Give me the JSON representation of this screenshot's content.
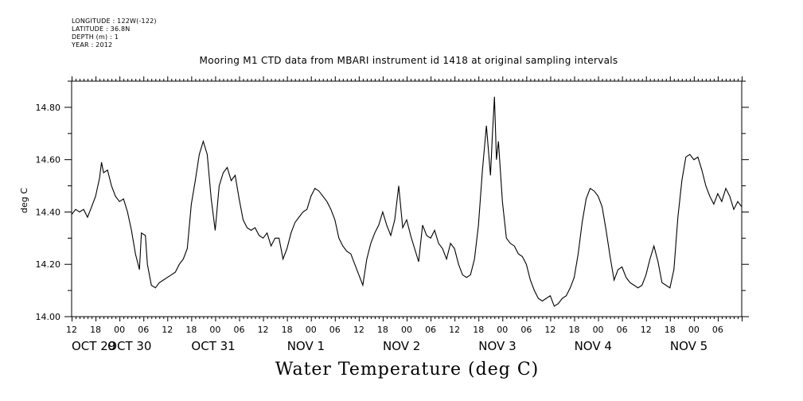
{
  "meta": {
    "longitude": "LONGITUDE : 122W(-122)",
    "latitude": "LATITUDE : 36.8N",
    "depth": "DEPTH (m) : 1",
    "year": "YEAR : 2012"
  },
  "chart_data": {
    "type": "line",
    "title": "Mooring M1 CTD data from MBARI instrument id 1418 at original sampling intervals",
    "xlabel": "Water Temperature (deg C)",
    "ylabel": "deg C",
    "ylim": [
      14.0,
      14.9
    ],
    "yticks": [
      "14.00",
      "14.20",
      "14.40",
      "14.60",
      "14.80"
    ],
    "xlim_hours": [
      0,
      168
    ],
    "hour_ticks": [
      "12",
      "18",
      "00",
      "06",
      "12",
      "18",
      "00",
      "06",
      "12",
      "18",
      "00",
      "06",
      "12",
      "18",
      "00",
      "06",
      "12",
      "18",
      "00",
      "06",
      "12",
      "18",
      "00",
      "06",
      "12",
      "18",
      "00",
      "06"
    ],
    "day_labels": [
      "OCT 29",
      "OCT 30",
      "OCT 31",
      "NOV  1",
      "NOV  2",
      "NOV  3",
      "NOV  4",
      "NOV  5"
    ],
    "grid": false,
    "series": [
      {
        "values": [
          [
            0,
            14.39
          ],
          [
            1,
            14.41
          ],
          [
            2,
            14.4
          ],
          [
            3,
            14.41
          ],
          [
            4,
            14.38
          ],
          [
            5,
            14.42
          ],
          [
            6,
            14.46
          ],
          [
            7,
            14.53
          ],
          [
            7.5,
            14.59
          ],
          [
            8,
            14.55
          ],
          [
            9,
            14.56
          ],
          [
            10,
            14.5
          ],
          [
            11,
            14.46
          ],
          [
            12,
            14.44
          ],
          [
            13,
            14.45
          ],
          [
            14,
            14.4
          ],
          [
            15,
            14.33
          ],
          [
            16,
            14.24
          ],
          [
            17,
            14.18
          ],
          [
            17.5,
            14.32
          ],
          [
            18.5,
            14.31
          ],
          [
            19,
            14.2
          ],
          [
            20,
            14.12
          ],
          [
            21,
            14.11
          ],
          [
            22,
            14.13
          ],
          [
            23,
            14.14
          ],
          [
            24,
            14.15
          ],
          [
            25,
            14.16
          ],
          [
            26,
            14.17
          ],
          [
            27,
            14.2
          ],
          [
            28,
            14.22
          ],
          [
            29,
            14.26
          ],
          [
            30,
            14.43
          ],
          [
            31,
            14.52
          ],
          [
            32,
            14.62
          ],
          [
            33,
            14.67
          ],
          [
            34,
            14.62
          ],
          [
            35,
            14.45
          ],
          [
            36,
            14.33
          ],
          [
            37,
            14.5
          ],
          [
            38,
            14.55
          ],
          [
            39,
            14.57
          ],
          [
            40,
            14.52
          ],
          [
            41,
            14.54
          ],
          [
            42,
            14.45
          ],
          [
            43,
            14.37
          ],
          [
            44,
            14.34
          ],
          [
            45,
            14.33
          ],
          [
            46,
            14.34
          ],
          [
            47,
            14.31
          ],
          [
            48,
            14.3
          ],
          [
            49,
            14.32
          ],
          [
            50,
            14.27
          ],
          [
            51,
            14.3
          ],
          [
            52,
            14.3
          ],
          [
            53,
            14.22
          ],
          [
            54,
            14.26
          ],
          [
            55,
            14.32
          ],
          [
            56,
            14.36
          ],
          [
            57,
            14.38
          ],
          [
            58,
            14.4
          ],
          [
            59,
            14.41
          ],
          [
            60,
            14.46
          ],
          [
            61,
            14.49
          ],
          [
            62,
            14.48
          ],
          [
            63,
            14.46
          ],
          [
            64,
            14.44
          ],
          [
            65,
            14.41
          ],
          [
            66,
            14.37
          ],
          [
            67,
            14.3
          ],
          [
            68,
            14.27
          ],
          [
            69,
            14.25
          ],
          [
            70,
            14.24
          ],
          [
            71,
            14.2
          ],
          [
            72,
            14.16
          ],
          [
            73,
            14.12
          ],
          [
            74,
            14.22
          ],
          [
            75,
            14.28
          ],
          [
            76,
            14.32
          ],
          [
            77,
            14.35
          ],
          [
            78,
            14.4
          ],
          [
            79,
            14.35
          ],
          [
            80,
            14.31
          ],
          [
            81,
            14.37
          ],
          [
            82,
            14.5
          ],
          [
            83,
            14.34
          ],
          [
            84,
            14.37
          ],
          [
            85,
            14.31
          ],
          [
            86,
            14.26
          ],
          [
            87,
            14.21
          ],
          [
            88,
            14.35
          ],
          [
            89,
            14.31
          ],
          [
            90,
            14.3
          ],
          [
            91,
            14.33
          ],
          [
            92,
            14.28
          ],
          [
            93,
            14.26
          ],
          [
            94,
            14.22
          ],
          [
            95,
            14.28
          ],
          [
            96,
            14.26
          ],
          [
            97,
            14.2
          ],
          [
            98,
            14.16
          ],
          [
            99,
            14.15
          ],
          [
            100,
            14.16
          ],
          [
            101,
            14.22
          ],
          [
            102,
            14.35
          ],
          [
            103,
            14.56
          ],
          [
            104,
            14.73
          ],
          [
            105,
            14.54
          ],
          [
            105.5,
            14.7
          ],
          [
            106,
            14.84
          ],
          [
            106.5,
            14.6
          ],
          [
            107,
            14.67
          ],
          [
            108,
            14.44
          ],
          [
            109,
            14.3
          ],
          [
            110,
            14.28
          ],
          [
            111,
            14.27
          ],
          [
            112,
            14.24
          ],
          [
            113,
            14.23
          ],
          [
            114,
            14.2
          ],
          [
            115,
            14.14
          ],
          [
            116,
            14.1
          ],
          [
            117,
            14.07
          ],
          [
            118,
            14.06
          ],
          [
            119,
            14.07
          ],
          [
            120,
            14.08
          ],
          [
            121,
            14.04
          ],
          [
            122,
            14.05
          ],
          [
            123,
            14.07
          ],
          [
            124,
            14.08
          ],
          [
            125,
            14.11
          ],
          [
            126,
            14.15
          ],
          [
            127,
            14.24
          ],
          [
            128,
            14.36
          ],
          [
            129,
            14.45
          ],
          [
            130,
            14.49
          ],
          [
            131,
            14.48
          ],
          [
            132,
            14.46
          ],
          [
            133,
            14.42
          ],
          [
            134,
            14.33
          ],
          [
            135,
            14.23
          ],
          [
            136,
            14.14
          ],
          [
            137,
            14.18
          ],
          [
            138,
            14.19
          ],
          [
            139,
            14.15
          ],
          [
            140,
            14.13
          ],
          [
            141,
            14.12
          ],
          [
            142,
            14.11
          ],
          [
            143,
            14.12
          ],
          [
            144,
            14.16
          ],
          [
            145,
            14.22
          ],
          [
            146,
            14.27
          ],
          [
            147,
            14.21
          ],
          [
            148,
            14.13
          ],
          [
            149,
            14.12
          ],
          [
            150,
            14.11
          ],
          [
            151,
            14.18
          ],
          [
            152,
            14.38
          ],
          [
            153,
            14.52
          ],
          [
            154,
            14.61
          ],
          [
            155,
            14.62
          ],
          [
            156,
            14.6
          ],
          [
            157,
            14.61
          ],
          [
            158,
            14.56
          ],
          [
            159,
            14.5
          ],
          [
            160,
            14.46
          ],
          [
            161,
            14.43
          ],
          [
            162,
            14.47
          ],
          [
            163,
            14.44
          ],
          [
            164,
            14.49
          ],
          [
            165,
            14.46
          ],
          [
            166,
            14.41
          ],
          [
            167,
            14.44
          ],
          [
            168,
            14.42
          ]
        ]
      }
    ]
  }
}
